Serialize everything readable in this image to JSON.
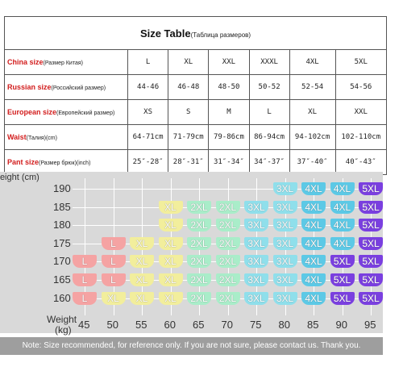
{
  "table": {
    "title": "Size Table",
    "subtitle": "(Таблица размеров)",
    "rows": [
      {
        "label": "China size",
        "note": "(Размер Китая)",
        "cells": [
          "L",
          "XL",
          "XXL",
          "XXXL",
          "4XL",
          "5XL"
        ]
      },
      {
        "label": "Russian size",
        "note": "(Российский размер)",
        "cells": [
          "44-46",
          "46-48",
          "48-50",
          "50-52",
          "52-54",
          "54-56"
        ]
      },
      {
        "label": "European size",
        "note": "(Европейский размер)",
        "cells": [
          "XS",
          "S",
          "M",
          "L",
          "XL",
          "XXL"
        ]
      },
      {
        "label": "Waist",
        "note": "(Талия)(cm)",
        "cells": [
          "64-71cm",
          "71-79cm",
          "79-86cm",
          "86-94cm",
          "94-102cm",
          "102-110cm"
        ]
      },
      {
        "label": "Pant size",
        "note": "(Размер брюк)(inch)",
        "cells": [
          "25″-28″",
          "28″-31″",
          "31″-34″",
          "34″-37″",
          "37″-40″",
          "40″-43″"
        ]
      }
    ]
  },
  "size_chart": {
    "y_label": "Height (cm)",
    "x_label": "Weight",
    "x_unit": "(kg)",
    "heights": [
      190,
      185,
      180,
      175,
      170,
      165,
      160
    ],
    "weights": [
      45,
      50,
      55,
      60,
      65,
      70,
      75,
      80,
      85,
      90,
      95
    ],
    "cells": [
      [
        null,
        null,
        null,
        null,
        null,
        null,
        null,
        "3XL",
        "4XL",
        "4XL",
        "5XL"
      ],
      [
        null,
        null,
        null,
        "XL",
        "2XL",
        "2XL",
        "3XL",
        "3XL",
        "4XL",
        "4XL",
        "5XL"
      ],
      [
        null,
        null,
        null,
        "XL",
        "2XL",
        "2XL",
        "3XL",
        "3XL",
        "4XL",
        "4XL",
        "5XL"
      ],
      [
        null,
        "L",
        "XL",
        "XL",
        "2XL",
        "2XL",
        "3XL",
        "3XL",
        "4XL",
        "4XL",
        "5XL"
      ],
      [
        "L",
        "L",
        "XL",
        "XL",
        "2XL",
        "2XL",
        "3XL",
        "3XL",
        "4XL",
        "5XL",
        "5XL"
      ],
      [
        "L",
        "L",
        "XL",
        "XL",
        "2XL",
        "2XL",
        "3XL",
        "3XL",
        "4XL",
        "5XL",
        "5XL"
      ],
      [
        "L",
        "XL",
        "XL",
        "XL",
        "2XL",
        "2XL",
        "3XL",
        "3XL",
        "4XL",
        "5XL",
        "5XL"
      ]
    ],
    "palette": {
      "L": "#f5a3a3",
      "XL": "#f2ee9c",
      "2XL": "#a9edc9",
      "3XL": "#8fdfeb",
      "4XL": "#5cc9e6",
      "5XL": "#7a3fe0"
    }
  },
  "note": "Note: Size recommended, for reference only. If you are not sure, please contact us. Thank you."
}
